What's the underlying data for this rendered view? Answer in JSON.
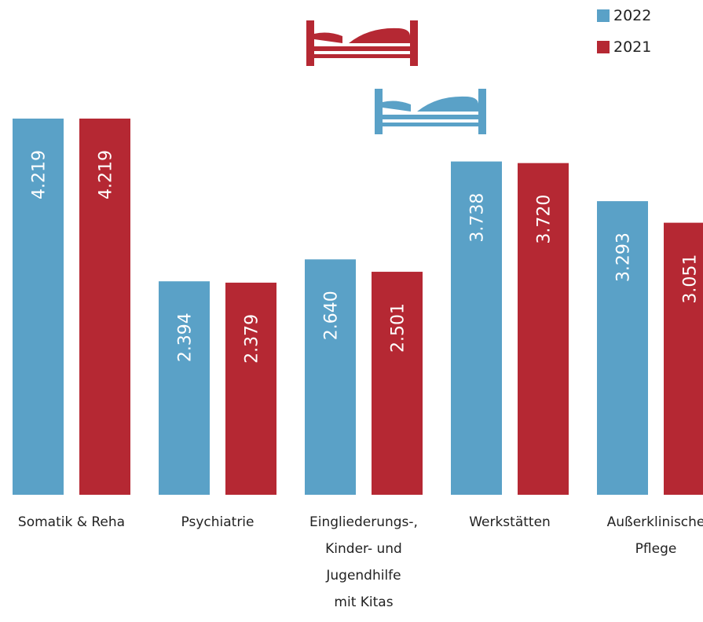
{
  "chart_data": {
    "type": "bar",
    "categories": [
      [
        "Somatik & Reha"
      ],
      [
        "Psychiatrie"
      ],
      [
        "Eingliederungs-,",
        "Kinder- und",
        "Jugendhilfe",
        "mit Kitas"
      ],
      [
        "Werkstätten"
      ],
      [
        "Außerklinische",
        "Pflege"
      ]
    ],
    "series": [
      {
        "name": "2022",
        "color": "#5aa1c7",
        "values": [
          4219,
          2394,
          2640,
          3738,
          3293
        ],
        "labels": [
          "4.219",
          "2.394",
          "2.640",
          "3.738",
          "3.293"
        ]
      },
      {
        "name": "2021",
        "color": "#b52833",
        "values": [
          4219,
          2379,
          2501,
          3720,
          3051
        ],
        "labels": [
          "4.219",
          "2.379",
          "2.501",
          "3.720",
          "3.051"
        ]
      }
    ],
    "ylim": [
      0,
      4219
    ],
    "grid": false,
    "legend_position": "top-right",
    "icons": [
      "bed-icon-2021",
      "bed-icon-2022"
    ]
  }
}
